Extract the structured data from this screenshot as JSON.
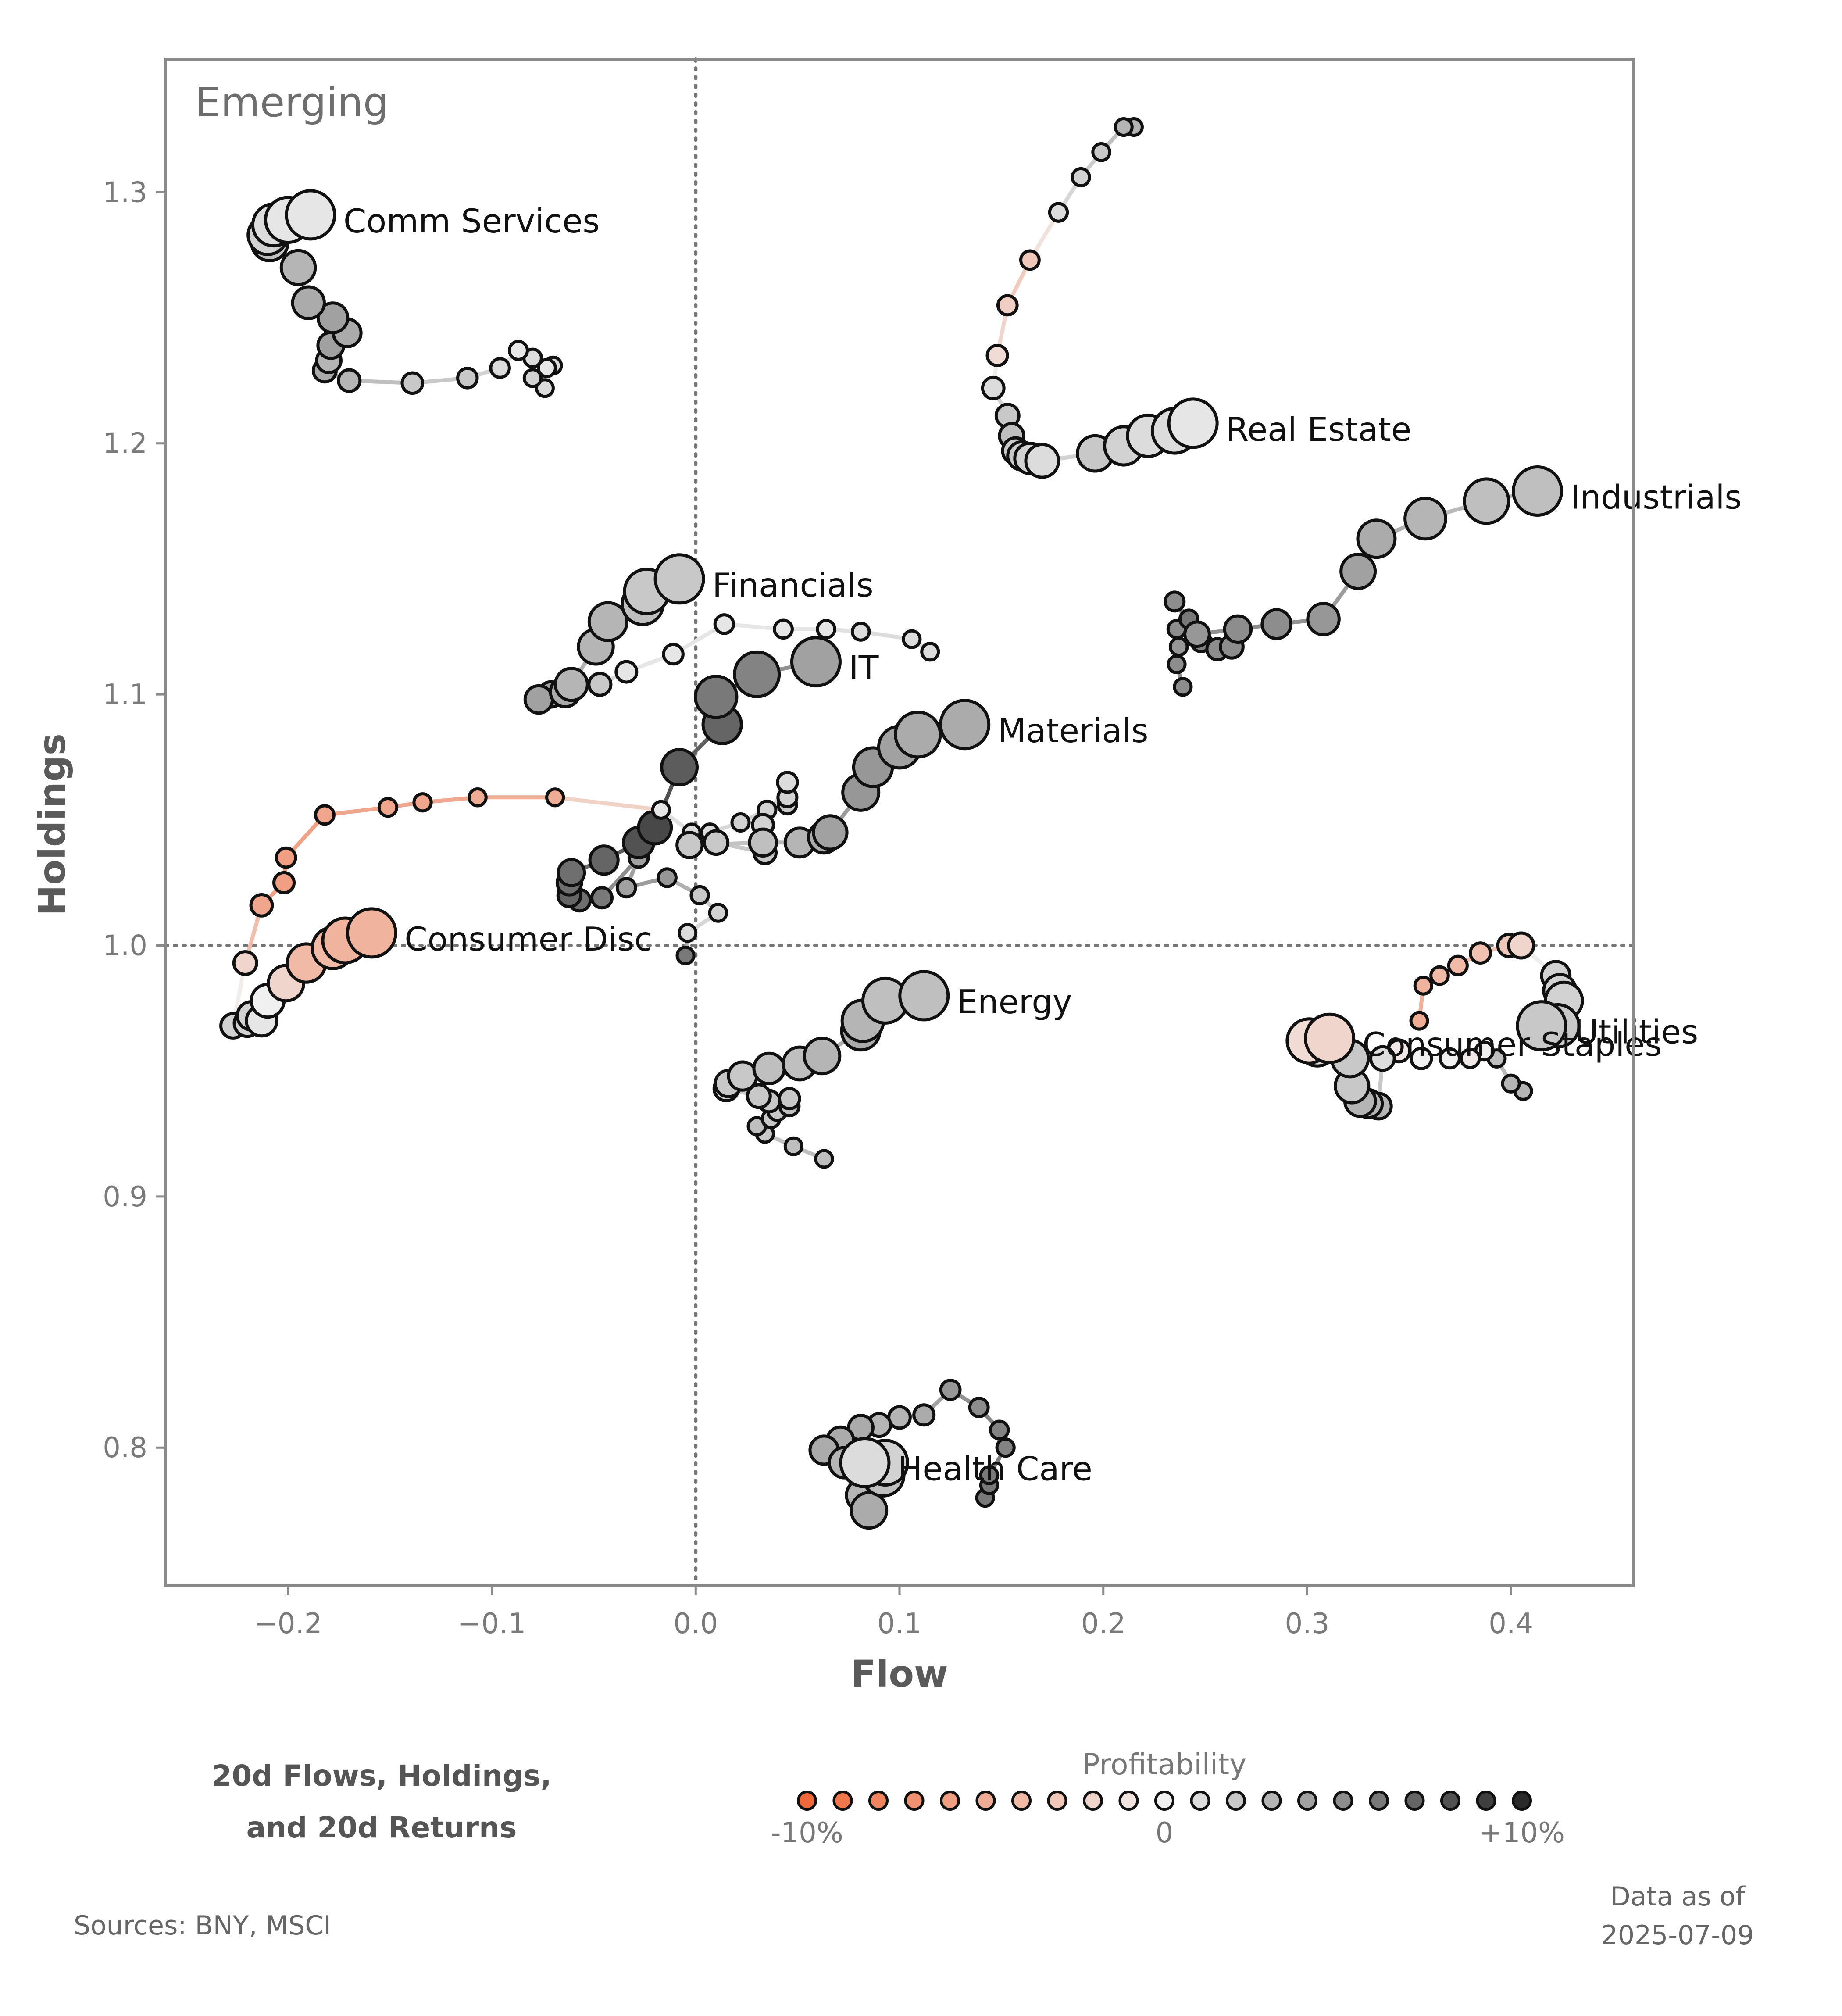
{
  "chart_data": {
    "type": "scatter",
    "title": "Emerging",
    "xlabel": "Flow",
    "ylabel": "Holdings",
    "xlim": [
      -0.26,
      0.46
    ],
    "ylim": [
      0.745,
      1.353
    ],
    "xticks": [
      -0.2,
      -0.1,
      0.0,
      0.1,
      0.2,
      0.3,
      0.4
    ],
    "xtick_labels": [
      "−0.2",
      "−0.1",
      "0.0",
      "0.1",
      "0.2",
      "0.3",
      "0.4"
    ],
    "yticks": [
      0.8,
      0.9,
      1.0,
      1.1,
      1.2,
      1.3
    ],
    "ytick_labels": [
      "0.8",
      "0.9",
      "1.0",
      "1.1",
      "1.2",
      "1.3"
    ],
    "reference_lines": {
      "x": 0.0,
      "y": 1.0,
      "style": "dotted"
    },
    "colorbar": {
      "title": "Profitability",
      "min": -10,
      "max": 10,
      "tick_labels": [
        "-10%",
        "0",
        "+10%"
      ],
      "low_color": "#f0693a",
      "mid_color": "#f0f0f0",
      "high_color": "#2a2a2a"
    },
    "series": [
      {
        "name": "Comm Services",
        "points": [
          [
            -0.07,
            1.231
          ],
          [
            -0.074,
            1.222
          ],
          [
            -0.08,
            1.226
          ],
          [
            -0.073,
            1.23
          ],
          [
            -0.08,
            1.234
          ],
          [
            -0.087,
            1.237
          ],
          [
            -0.096,
            1.23
          ],
          [
            -0.112,
            1.226
          ],
          [
            -0.139,
            1.224
          ],
          [
            -0.17,
            1.225
          ],
          [
            -0.182,
            1.229
          ],
          [
            -0.18,
            1.233
          ],
          [
            -0.179,
            1.239
          ],
          [
            -0.171,
            1.244
          ],
          [
            -0.178,
            1.25
          ],
          [
            -0.19,
            1.256
          ],
          [
            -0.195,
            1.27
          ],
          [
            -0.209,
            1.28
          ],
          [
            -0.21,
            1.283
          ],
          [
            -0.207,
            1.287
          ],
          [
            -0.2,
            1.289
          ],
          [
            -0.189,
            1.291
          ]
        ],
        "returns": [
          1,
          1,
          1.5,
          0.5,
          1,
          0.5,
          1,
          2,
          2,
          3,
          3.5,
          3,
          4,
          3.5,
          4,
          3.5,
          3,
          2.5,
          1.5,
          1,
          0.5,
          0.5
        ]
      },
      {
        "name": "Real Estate",
        "points": [
          [
            0.215,
            1.326
          ],
          [
            0.21,
            1.326
          ],
          [
            0.199,
            1.316
          ],
          [
            0.189,
            1.306
          ],
          [
            0.178,
            1.292
          ],
          [
            0.164,
            1.273
          ],
          [
            0.153,
            1.255
          ],
          [
            0.148,
            1.235
          ],
          [
            0.146,
            1.222
          ],
          [
            0.153,
            1.211
          ],
          [
            0.155,
            1.203
          ],
          [
            0.157,
            1.197
          ],
          [
            0.16,
            1.195
          ],
          [
            0.164,
            1.194
          ],
          [
            0.17,
            1.193
          ],
          [
            0.196,
            1.196
          ],
          [
            0.21,
            1.199
          ],
          [
            0.222,
            1.203
          ],
          [
            0.235,
            1.205
          ],
          [
            0.244,
            1.208
          ]
        ],
        "returns": [
          3,
          3,
          2,
          1.5,
          1,
          -3,
          -2.5,
          -1.5,
          1,
          2,
          2.5,
          2,
          2,
          1.5,
          1,
          2,
          1.5,
          1,
          1,
          0.5
        ]
      },
      {
        "name": "Industrials",
        "points": [
          [
            0.239,
            1.103
          ],
          [
            0.236,
            1.112
          ],
          [
            0.237,
            1.119
          ],
          [
            0.236,
            1.126
          ],
          [
            0.242,
            1.13
          ],
          [
            0.235,
            1.137
          ],
          [
            0.248,
            1.121
          ],
          [
            0.256,
            1.118
          ],
          [
            0.263,
            1.119
          ],
          [
            0.246,
            1.124
          ],
          [
            0.266,
            1.126
          ],
          [
            0.285,
            1.128
          ],
          [
            0.308,
            1.13
          ],
          [
            0.325,
            1.149
          ],
          [
            0.334,
            1.162
          ],
          [
            0.358,
            1.17
          ],
          [
            0.388,
            1.177
          ],
          [
            0.413,
            1.181
          ]
        ],
        "returns": [
          5,
          5,
          4.5,
          5,
          6,
          5,
          5.5,
          5,
          5,
          4.5,
          5,
          5,
          4.5,
          4,
          3.5,
          3,
          2.5,
          2.5
        ]
      },
      {
        "name": "Financials",
        "points": [
          [
            0.115,
            1.117
          ],
          [
            0.106,
            1.122
          ],
          [
            0.081,
            1.125
          ],
          [
            0.064,
            1.126
          ],
          [
            0.043,
            1.126
          ],
          [
            0.014,
            1.128
          ],
          [
            -0.011,
            1.116
          ],
          [
            -0.034,
            1.109
          ],
          [
            -0.047,
            1.104
          ],
          [
            -0.063,
            1.102
          ],
          [
            -0.071,
            1.1
          ],
          [
            -0.077,
            1.098
          ],
          [
            -0.064,
            1.101
          ],
          [
            -0.061,
            1.104
          ],
          [
            -0.049,
            1.119
          ],
          [
            -0.043,
            1.129
          ],
          [
            -0.026,
            1.136
          ],
          [
            -0.024,
            1.141
          ],
          [
            -0.008,
            1.146
          ]
        ],
        "returns": [
          1,
          1,
          1,
          0.5,
          0.5,
          0.5,
          0.5,
          0.5,
          2,
          3,
          4,
          4,
          3.5,
          3,
          3,
          3,
          2.5,
          2,
          2
        ]
      },
      {
        "name": "IT",
        "points": [
          [
            -0.005,
            0.996
          ],
          [
            -0.004,
            1.005
          ],
          [
            0.011,
            1.013
          ],
          [
            0.002,
            1.02
          ],
          [
            -0.014,
            1.027
          ],
          [
            -0.034,
            1.023
          ],
          [
            -0.028,
            1.035
          ],
          [
            -0.046,
            1.019
          ],
          [
            -0.057,
            1.018
          ],
          [
            -0.062,
            1.02
          ],
          [
            -0.062,
            1.025
          ],
          [
            -0.061,
            1.029
          ],
          [
            -0.045,
            1.034
          ],
          [
            -0.028,
            1.041
          ],
          [
            -0.02,
            1.047
          ],
          [
            -0.008,
            1.071
          ],
          [
            0.013,
            1.088
          ],
          [
            0.01,
            1.099
          ],
          [
            0.03,
            1.108
          ],
          [
            0.059,
            1.113
          ]
        ],
        "returns": [
          6,
          1,
          1.5,
          2,
          4.5,
          4,
          4,
          6,
          6.5,
          7,
          6.5,
          6.5,
          7,
          8,
          8.5,
          7.5,
          7,
          6,
          5.5,
          4
        ]
      },
      {
        "name": "Materials",
        "points": [
          [
            -0.017,
            1.054
          ],
          [
            -0.002,
            1.045
          ],
          [
            0.007,
            1.045
          ],
          [
            0.022,
            1.049
          ],
          [
            0.035,
            1.054
          ],
          [
            0.045,
            1.056
          ],
          [
            0.045,
            1.059
          ],
          [
            0.045,
            1.065
          ],
          [
            0.033,
            1.048
          ],
          [
            0.034,
            1.037
          ],
          [
            0.01,
            1.041
          ],
          [
            -0.003,
            1.04
          ],
          [
            0.033,
            1.041
          ],
          [
            0.051,
            1.041
          ],
          [
            0.063,
            1.043
          ],
          [
            0.066,
            1.045
          ],
          [
            0.081,
            1.061
          ],
          [
            0.087,
            1.071
          ],
          [
            0.1,
            1.079
          ],
          [
            0.109,
            1.084
          ],
          [
            0.132,
            1.088
          ]
        ],
        "returns": [
          0.5,
          1,
          1,
          1.5,
          1.5,
          2,
          1.5,
          1,
          1.5,
          2,
          2,
          2,
          2.5,
          3,
          3.5,
          4,
          4.5,
          4.5,
          4,
          3.5,
          3.5
        ]
      },
      {
        "name": "Consumer Disc",
        "points": [
          [
            -0.017,
            1.054
          ],
          [
            -0.069,
            1.059
          ],
          [
            -0.107,
            1.059
          ],
          [
            -0.134,
            1.057
          ],
          [
            -0.151,
            1.055
          ],
          [
            -0.182,
            1.052
          ],
          [
            -0.201,
            1.035
          ],
          [
            -0.202,
            1.025
          ],
          [
            -0.213,
            1.016
          ],
          [
            -0.221,
            0.993
          ],
          [
            -0.227,
            0.968
          ],
          [
            -0.22,
            0.969
          ],
          [
            -0.218,
            0.972
          ],
          [
            -0.213,
            0.97
          ],
          [
            -0.21,
            0.978
          ],
          [
            -0.201,
            0.985
          ],
          [
            -0.191,
            0.993
          ],
          [
            -0.178,
            0.999
          ],
          [
            -0.172,
            1.002
          ],
          [
            -0.159,
            1.005
          ]
        ],
        "returns": [
          0.5,
          -5,
          -5,
          -5.5,
          -5.5,
          -5.5,
          -6,
          -6,
          -5.5,
          -2,
          1.5,
          1.5,
          1.5,
          0.5,
          0,
          -2,
          -4,
          -4,
          -4.5,
          -4.5
        ]
      },
      {
        "name": "Energy",
        "points": [
          [
            0.063,
            0.915
          ],
          [
            0.048,
            0.92
          ],
          [
            0.034,
            0.925
          ],
          [
            0.03,
            0.928
          ],
          [
            0.037,
            0.931
          ],
          [
            0.04,
            0.934
          ],
          [
            0.046,
            0.936
          ],
          [
            0.046,
            0.939
          ],
          [
            0.036,
            0.938
          ],
          [
            0.031,
            0.94
          ],
          [
            0.015,
            0.943
          ],
          [
            0.016,
            0.945
          ],
          [
            0.023,
            0.948
          ],
          [
            0.036,
            0.951
          ],
          [
            0.051,
            0.953
          ],
          [
            0.062,
            0.956
          ],
          [
            0.081,
            0.966
          ],
          [
            0.082,
            0.97
          ],
          [
            0.093,
            0.978
          ],
          [
            0.112,
            0.98
          ]
        ],
        "returns": [
          2.5,
          2.5,
          2,
          2.5,
          2,
          2,
          2.5,
          2,
          2,
          2,
          1.5,
          2,
          2,
          2.5,
          2.5,
          3,
          3.5,
          3,
          2.5,
          2.5
        ]
      },
      {
        "name": "Utilities",
        "points": [
          [
            0.355,
            0.97
          ],
          [
            0.357,
            0.984
          ],
          [
            0.365,
            0.988
          ],
          [
            0.374,
            0.992
          ],
          [
            0.385,
            0.997
          ],
          [
            0.399,
            1.0
          ],
          [
            0.405,
            1.0
          ],
          [
            0.422,
            0.988
          ],
          [
            0.424,
            0.982
          ],
          [
            0.426,
            0.978
          ],
          [
            0.423,
            0.968
          ],
          [
            0.415,
            0.968
          ]
        ],
        "returns": [
          -5,
          -4.5,
          -4,
          -4,
          -3.5,
          -3,
          -2,
          1.5,
          1.5,
          1.5,
          2,
          2
        ]
      },
      {
        "name": "Consumer Staples",
        "points": [
          [
            0.406,
            0.942
          ],
          [
            0.4,
            0.945
          ],
          [
            0.393,
            0.955
          ],
          [
            0.387,
            0.958
          ],
          [
            0.38,
            0.955
          ],
          [
            0.37,
            0.955
          ],
          [
            0.356,
            0.955
          ],
          [
            0.345,
            0.958
          ],
          [
            0.337,
            0.955
          ],
          [
            0.335,
            0.936
          ],
          [
            0.33,
            0.937
          ],
          [
            0.326,
            0.938
          ],
          [
            0.322,
            0.944
          ],
          [
            0.321,
            0.955
          ],
          [
            0.305,
            0.96
          ],
          [
            0.301,
            0.962
          ],
          [
            0.311,
            0.963
          ]
        ],
        "returns": [
          3,
          3,
          2.5,
          0,
          -0.5,
          0,
          0,
          -0.5,
          1,
          3,
          3,
          3,
          2,
          2,
          1,
          -1.5,
          -2
        ]
      },
      {
        "name": "Health Care",
        "points": [
          [
            0.142,
            0.78
          ],
          [
            0.144,
            0.785
          ],
          [
            0.144,
            0.789
          ],
          [
            0.152,
            0.8
          ],
          [
            0.149,
            0.807
          ],
          [
            0.139,
            0.816
          ],
          [
            0.125,
            0.823
          ],
          [
            0.112,
            0.813
          ],
          [
            0.1,
            0.812
          ],
          [
            0.09,
            0.809
          ],
          [
            0.081,
            0.808
          ],
          [
            0.071,
            0.803
          ],
          [
            0.063,
            0.799
          ],
          [
            0.073,
            0.794
          ],
          [
            0.082,
            0.781
          ],
          [
            0.085,
            0.775
          ],
          [
            0.088,
            0.792
          ],
          [
            0.092,
            0.789
          ],
          [
            0.093,
            0.794
          ],
          [
            0.083,
            0.794
          ]
        ],
        "returns": [
          6,
          6,
          6,
          5.5,
          5.5,
          5,
          4.5,
          3.5,
          3,
          3,
          3.5,
          3.5,
          3.5,
          3,
          3,
          3.5,
          3,
          2.5,
          1.5,
          1
        ]
      }
    ]
  },
  "legend": {
    "title_line1": "20d Flows, Holdings,",
    "title_line2": "and 20d Returns"
  },
  "footer": {
    "sources": "Sources:  BNY, MSCI",
    "asof_line1": "Data as of",
    "asof_line2": "2025-07-09"
  }
}
